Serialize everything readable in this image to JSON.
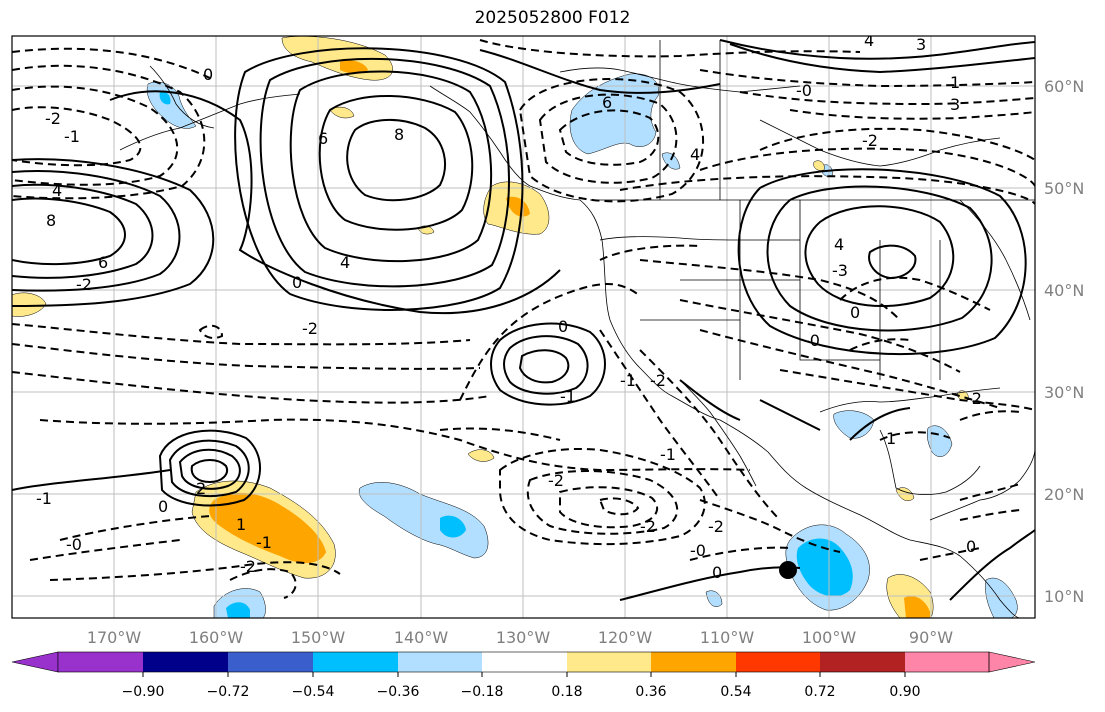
{
  "title": "2025052800 F012",
  "map": {
    "lon_labels": [
      "170°W",
      "160°W",
      "150°W",
      "140°W",
      "130°W",
      "120°W",
      "110°W",
      "100°W",
      "90°W"
    ],
    "lat_labels": [
      "60°N",
      "50°N",
      "40°N",
      "30°N",
      "20°N",
      "10°N"
    ],
    "contour_labels": [
      {
        "text": "0",
        "name": "contour-label-0"
      },
      {
        "text": "-2",
        "name": "contour-label-neg2"
      },
      {
        "text": "-1",
        "name": "contour-label-neg1"
      },
      {
        "text": "4",
        "name": "contour-label-4"
      },
      {
        "text": "8",
        "name": "contour-label-8"
      },
      {
        "text": "6",
        "name": "contour-label-6"
      },
      {
        "text": "-2",
        "name": "contour-label-neg2"
      },
      {
        "text": "6",
        "name": "contour-label-6"
      },
      {
        "text": "8",
        "name": "contour-label-8"
      },
      {
        "text": "4",
        "name": "contour-label-4"
      },
      {
        "text": "0",
        "name": "contour-label-0"
      },
      {
        "text": "-2",
        "name": "contour-label-neg2"
      },
      {
        "text": "4",
        "name": "contour-label-4"
      },
      {
        "text": "3",
        "name": "contour-label-3"
      },
      {
        "text": "-0",
        "name": "contour-label-neg0"
      },
      {
        "text": "1",
        "name": "contour-label-1"
      },
      {
        "text": "3",
        "name": "contour-label-3"
      },
      {
        "text": "6",
        "name": "contour-label-6"
      },
      {
        "text": "4",
        "name": "contour-label-4"
      },
      {
        "text": "-2",
        "name": "contour-label-neg2"
      },
      {
        "text": "4",
        "name": "contour-label-4"
      },
      {
        "text": "-3",
        "name": "contour-label-neg3"
      },
      {
        "text": "0",
        "name": "contour-label-0"
      },
      {
        "text": "-0",
        "name": "contour-label-neg0"
      },
      {
        "text": "0",
        "name": "contour-label-0"
      },
      {
        "text": "-2",
        "name": "contour-label-neg2"
      },
      {
        "text": "-1",
        "name": "contour-label-neg1"
      },
      {
        "text": "1",
        "name": "contour-label-1"
      },
      {
        "text": "0",
        "name": "contour-label-0"
      },
      {
        "text": "-1",
        "name": "contour-label-neg1"
      },
      {
        "text": "2",
        "name": "contour-label-2"
      },
      {
        "text": "1",
        "name": "contour-label-1"
      },
      {
        "text": "-0",
        "name": "contour-label-neg0"
      },
      {
        "text": "-1",
        "name": "contour-label-neg1"
      },
      {
        "text": "-2",
        "name": "contour-label-neg2"
      },
      {
        "text": "-2",
        "name": "contour-label-neg2"
      },
      {
        "text": "-2",
        "name": "contour-label-neg2"
      },
      {
        "text": "-0",
        "name": "contour-label-neg0"
      },
      {
        "text": "0",
        "name": "contour-label-0"
      },
      {
        "text": "-1",
        "name": "contour-label-neg1"
      },
      {
        "text": "-2",
        "name": "contour-label-neg2"
      },
      {
        "text": "0",
        "name": "contour-label-0"
      },
      {
        "text": "-1",
        "name": "contour-label-neg1"
      },
      {
        "text": "-2",
        "name": "contour-label-neg2"
      }
    ],
    "marker": "black-dot-marker"
  },
  "colorbar": {
    "tick_labels": [
      "−0.90",
      "−0.72",
      "−0.54",
      "−0.36",
      "−0.18",
      "0.18",
      "0.36",
      "0.54",
      "0.72",
      "0.90"
    ],
    "colors": [
      "#9932cc",
      "#00008b",
      "#3a5fcd",
      "#00bfff",
      "#b2dfff",
      "#ffffff",
      "#ffe98a",
      "#ffa500",
      "#ff3800",
      "#b22222",
      "#ff85a8"
    ]
  },
  "colors": {
    "light_blue": "#b2dfff",
    "deep_sky_blue": "#00bfff",
    "light_yellow": "#ffe98a",
    "orange": "#ffa500",
    "grid": "#bfbfbf",
    "tick_label": "#808080"
  }
}
